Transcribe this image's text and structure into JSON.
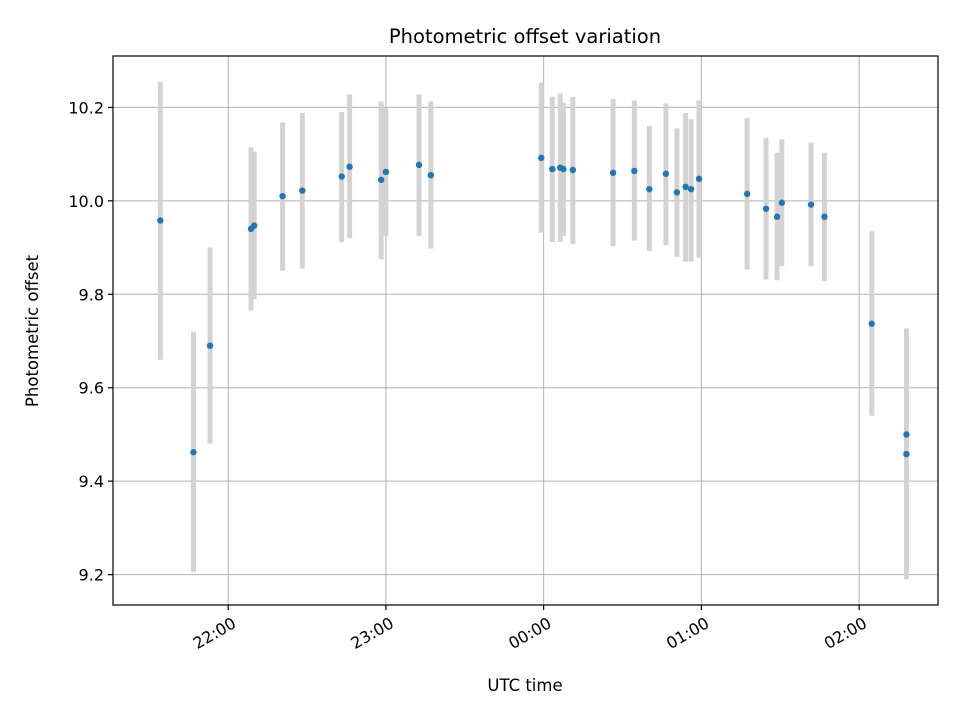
{
  "chart_data": {
    "type": "scatter",
    "title": "Photometric offset variation",
    "xlabel": "UTC time",
    "ylabel": "Photometric offset",
    "x_unit": "hours",
    "xlim": [
      -2.73,
      2.5
    ],
    "ylim": [
      9.135,
      10.31
    ],
    "x_ticks": [
      {
        "value": -2,
        "label": "22:00"
      },
      {
        "value": -1,
        "label": "23:00"
      },
      {
        "value": 0,
        "label": "00:00"
      },
      {
        "value": 1,
        "label": "01:00"
      },
      {
        "value": 2,
        "label": "02:00"
      }
    ],
    "y_ticks": [
      {
        "value": 9.2,
        "label": "9.2"
      },
      {
        "value": 9.4,
        "label": "9.4"
      },
      {
        "value": 9.6,
        "label": "9.6"
      },
      {
        "value": 9.8,
        "label": "9.8"
      },
      {
        "value": 10.0,
        "label": "10.0"
      },
      {
        "value": 10.2,
        "label": "10.2"
      }
    ],
    "grid": true,
    "colors": {
      "point": "#1f77b4",
      "error_bar": "#d3d3d3",
      "grid": "#b0b0b0",
      "axes": "#000000"
    },
    "series": [
      {
        "points": [
          {
            "x": -2.43,
            "y": 9.958,
            "ylow": 9.66,
            "yhigh": 10.255
          },
          {
            "x": -2.22,
            "y": 9.462,
            "ylow": 9.205,
            "yhigh": 9.72
          },
          {
            "x": -2.115,
            "y": 9.69,
            "ylow": 9.48,
            "yhigh": 9.9
          },
          {
            "x": -1.855,
            "y": 9.94,
            "ylow": 9.765,
            "yhigh": 10.115
          },
          {
            "x": -1.835,
            "y": 9.947,
            "ylow": 9.79,
            "yhigh": 10.105
          },
          {
            "x": -1.655,
            "y": 10.01,
            "ylow": 9.85,
            "yhigh": 10.168
          },
          {
            "x": -1.53,
            "y": 10.022,
            "ylow": 9.855,
            "yhigh": 10.188
          },
          {
            "x": -1.28,
            "y": 10.052,
            "ylow": 9.912,
            "yhigh": 10.19
          },
          {
            "x": -1.23,
            "y": 10.073,
            "ylow": 9.92,
            "yhigh": 10.228
          },
          {
            "x": -1.03,
            "y": 10.045,
            "ylow": 9.875,
            "yhigh": 10.213
          },
          {
            "x": -1.0,
            "y": 10.062,
            "ylow": 9.925,
            "yhigh": 10.198
          },
          {
            "x": -0.79,
            "y": 10.077,
            "ylow": 9.925,
            "yhigh": 10.228
          },
          {
            "x": -0.715,
            "y": 10.055,
            "ylow": 9.898,
            "yhigh": 10.213
          },
          {
            "x": -0.015,
            "y": 10.092,
            "ylow": 9.932,
            "yhigh": 10.253
          },
          {
            "x": 0.055,
            "y": 10.068,
            "ylow": 9.912,
            "yhigh": 10.223
          },
          {
            "x": 0.105,
            "y": 10.071,
            "ylow": 9.912,
            "yhigh": 10.23
          },
          {
            "x": 0.125,
            "y": 10.068,
            "ylow": 9.925,
            "yhigh": 10.21
          },
          {
            "x": 0.185,
            "y": 10.066,
            "ylow": 9.908,
            "yhigh": 10.222
          },
          {
            "x": 0.44,
            "y": 10.06,
            "ylow": 9.903,
            "yhigh": 10.218
          },
          {
            "x": 0.575,
            "y": 10.064,
            "ylow": 9.915,
            "yhigh": 10.215
          },
          {
            "x": 0.67,
            "y": 10.025,
            "ylow": 9.893,
            "yhigh": 10.16
          },
          {
            "x": 0.775,
            "y": 10.058,
            "ylow": 9.905,
            "yhigh": 10.208
          },
          {
            "x": 0.845,
            "y": 10.018,
            "ylow": 9.88,
            "yhigh": 10.155
          },
          {
            "x": 0.9,
            "y": 10.03,
            "ylow": 9.87,
            "yhigh": 10.188
          },
          {
            "x": 0.935,
            "y": 10.025,
            "ylow": 9.87,
            "yhigh": 10.175
          },
          {
            "x": 0.985,
            "y": 10.047,
            "ylow": 9.878,
            "yhigh": 10.215
          },
          {
            "x": 1.29,
            "y": 10.015,
            "ylow": 9.853,
            "yhigh": 10.177
          },
          {
            "x": 1.41,
            "y": 9.983,
            "ylow": 9.832,
            "yhigh": 10.135
          },
          {
            "x": 1.48,
            "y": 9.966,
            "ylow": 9.83,
            "yhigh": 10.103
          },
          {
            "x": 1.51,
            "y": 9.996,
            "ylow": 9.86,
            "yhigh": 10.132
          },
          {
            "x": 1.695,
            "y": 9.992,
            "ylow": 9.86,
            "yhigh": 10.125
          },
          {
            "x": 1.78,
            "y": 9.966,
            "ylow": 9.828,
            "yhigh": 10.103
          },
          {
            "x": 2.08,
            "y": 9.737,
            "ylow": 9.54,
            "yhigh": 9.935
          },
          {
            "x": 2.3,
            "y": 9.5,
            "ylow": 9.5,
            "yhigh": 9.5
          },
          {
            "x": 2.3,
            "y": 9.458,
            "ylow": 9.19,
            "yhigh": 9.727
          }
        ]
      }
    ]
  }
}
